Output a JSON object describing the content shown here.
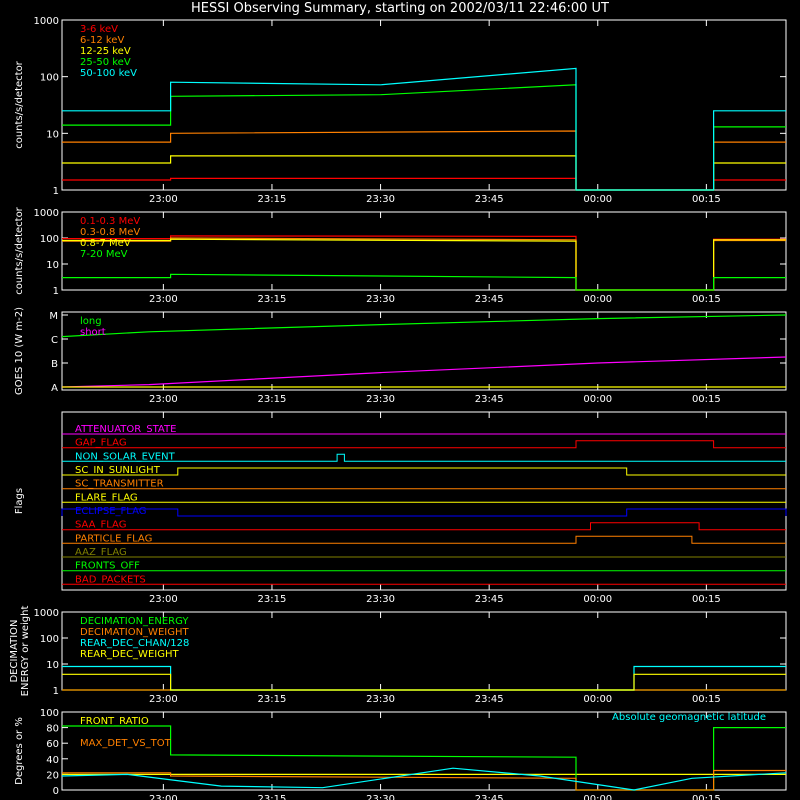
{
  "title": "HESSI Observing Summary, starting on 2002/03/11 22:46:00 UT",
  "time_ticks": [
    "23:00",
    "23:15",
    "23:30",
    "23:45",
    "00:00",
    "00:15"
  ],
  "chart_data": [
    {
      "type": "line",
      "ylabel": "counts/s/detector",
      "yscale": "log",
      "ylim": [
        1,
        1000
      ],
      "yticks": [
        "1",
        "10",
        "100",
        "1000"
      ],
      "x_range": [
        "22:46",
        "00:26"
      ],
      "series": [
        {
          "name": "3-6 keV",
          "color": "#ff0000",
          "x": [
            "22:46",
            "23:01",
            "23:01",
            "23:57",
            "23:57",
            "00:16",
            "00:16",
            "00:26"
          ],
          "y": [
            1.5,
            1.5,
            1.6,
            1.6,
            1,
            1,
            1.5,
            1.5
          ]
        },
        {
          "name": "6-12 keV",
          "color": "#ff8000",
          "x": [
            "22:46",
            "23:01",
            "23:01",
            "23:57",
            "23:57",
            "00:16",
            "00:16",
            "00:26"
          ],
          "y": [
            7,
            7,
            10,
            11,
            1,
            1,
            7,
            7
          ]
        },
        {
          "name": "12-25 keV",
          "color": "#ffff00",
          "x": [
            "22:46",
            "23:01",
            "23:01",
            "23:57",
            "23:57",
            "00:16",
            "00:16",
            "00:26"
          ],
          "y": [
            3,
            3,
            4,
            4,
            1,
            1,
            3,
            3
          ]
        },
        {
          "name": "25-50 keV",
          "color": "#00ff00",
          "x": [
            "22:46",
            "23:01",
            "23:01",
            "23:30",
            "23:57",
            "23:57",
            "00:16",
            "00:16",
            "00:26"
          ],
          "y": [
            14,
            14,
            45,
            48,
            72,
            1,
            1,
            13,
            13
          ]
        },
        {
          "name": "50-100 keV",
          "color": "#00ffff",
          "x": [
            "22:46",
            "23:01",
            "23:01",
            "23:30",
            "23:57",
            "23:57",
            "00:16",
            "00:16",
            "00:26"
          ],
          "y": [
            25,
            25,
            80,
            72,
            140,
            1,
            1,
            25,
            25
          ]
        }
      ]
    },
    {
      "type": "line",
      "ylabel": "counts/s/detector",
      "yscale": "log",
      "ylim": [
        1,
        1000
      ],
      "yticks": [
        "1",
        "10",
        "100",
        "1000"
      ],
      "x_range": [
        "22:46",
        "00:26"
      ],
      "series": [
        {
          "name": "0.1-0.3 MeV",
          "color": "#ff0000",
          "x": [
            "22:46",
            "23:01",
            "23:01",
            "23:57",
            "23:57",
            "00:16",
            "00:16",
            "00:26"
          ],
          "y": [
            95,
            95,
            120,
            115,
            1,
            1,
            90,
            90
          ]
        },
        {
          "name": "0.3-0.8 MeV",
          "color": "#ff8000",
          "x": [
            "22:46",
            "23:01",
            "23:01",
            "23:57",
            "23:57",
            "00:16",
            "00:16",
            "00:26"
          ],
          "y": [
            75,
            75,
            100,
            85,
            1,
            1,
            80,
            80
          ]
        },
        {
          "name": "0.8-7 MeV",
          "color": "#ffff00",
          "x": [
            "22:46",
            "23:01",
            "23:01",
            "23:57",
            "23:57",
            "00:16",
            "00:16",
            "00:26"
          ],
          "y": [
            80,
            80,
            90,
            75,
            1,
            1,
            85,
            85
          ]
        },
        {
          "name": "7-20 MeV",
          "color": "#00ff00",
          "x": [
            "22:46",
            "23:01",
            "23:01",
            "23:57",
            "23:57",
            "00:16",
            "00:16",
            "00:26"
          ],
          "y": [
            3,
            3,
            4,
            3,
            1,
            1,
            3,
            3
          ]
        }
      ]
    },
    {
      "type": "line",
      "ylabel": "GOES 10 (W m-2)",
      "ylevels": [
        "A",
        "B",
        "C",
        "M"
      ],
      "x_range": [
        "22:46",
        "00:26"
      ],
      "series": [
        {
          "name": "long",
          "color": "#00ff00",
          "x": [
            "22:46",
            "22:58",
            "23:30",
            "00:00",
            "00:26"
          ],
          "level": [
            2.1,
            2.3,
            2.6,
            2.85,
            3.0
          ]
        },
        {
          "name": "short",
          "color": "#ff00ff",
          "x": [
            "22:46",
            "22:58",
            "23:30",
            "00:00",
            "00:26"
          ],
          "level": [
            0.0,
            0.1,
            0.6,
            1.0,
            1.25
          ]
        },
        {
          "name": "",
          "color": "#ffff00",
          "x": [
            "22:46",
            "00:26"
          ],
          "level": [
            0,
            0
          ]
        }
      ]
    },
    {
      "type": "line",
      "ylabel": "Flags",
      "x_range": [
        "22:46",
        "00:26"
      ],
      "flags": [
        {
          "name": "ATTENUATOR_STATE",
          "color": "#ff00ff",
          "on": []
        },
        {
          "name": "GAP_FLAG",
          "color": "#ff0000",
          "on": [
            [
              "23:57",
              "00:16"
            ]
          ]
        },
        {
          "name": "NON_SOLAR_EVENT",
          "color": "#00ffff",
          "on": [
            [
              "23:24",
              "23:25"
            ]
          ]
        },
        {
          "name": "SC_IN_SUNLIGHT",
          "color": "#ffff00",
          "on": [
            [
              "23:02",
              "00:04"
            ]
          ]
        },
        {
          "name": "SC_TRANSMITTER",
          "color": "#ff8000",
          "on": []
        },
        {
          "name": "FLARE_FLAG",
          "color": "#ffff00",
          "on": []
        },
        {
          "name": "ECLIPSE_FLAG",
          "color": "#0000ff",
          "on": [
            [
              "22:46",
              "23:02"
            ],
            [
              "00:04",
              "00:26"
            ]
          ]
        },
        {
          "name": "SAA_FLAG",
          "color": "#ff0000",
          "on": [
            [
              "23:59",
              "00:14"
            ]
          ]
        },
        {
          "name": "PARTICLE_FLAG",
          "color": "#ff8000",
          "on": [
            [
              "23:57",
              "00:13"
            ]
          ]
        },
        {
          "name": "AAZ_FLAG",
          "color": "#808000",
          "on": []
        },
        {
          "name": "FRONTS_OFF",
          "color": "#00ff00",
          "on": []
        },
        {
          "name": "BAD_PACKETS",
          "color": "#ff0000",
          "on": []
        }
      ]
    },
    {
      "type": "line",
      "ylabel": "DECIMATION ENERGY or weight",
      "yscale": "log",
      "ylim": [
        1,
        1000
      ],
      "yticks": [
        "1",
        "10",
        "100",
        "1000"
      ],
      "x_range": [
        "22:46",
        "00:26"
      ],
      "series": [
        {
          "name": "DECIMATION_ENERGY",
          "color": "#00ff00",
          "x": [
            "22:46",
            "00:26"
          ],
          "y": [
            1,
            1
          ]
        },
        {
          "name": "DECIMATION_WEIGHT",
          "color": "#ff8000",
          "x": [
            "22:46",
            "00:26"
          ],
          "y": [
            1,
            1
          ]
        },
        {
          "name": "REAR_DEC_CHAN/128",
          "color": "#00ffff",
          "x": [
            "22:46",
            "23:01",
            "23:01",
            "00:05",
            "00:05",
            "00:26"
          ],
          "y": [
            8,
            8,
            1,
            1,
            8,
            8
          ]
        },
        {
          "name": "REAR_DEC_WEIGHT",
          "color": "#ffff00",
          "x": [
            "22:46",
            "23:01",
            "23:01",
            "00:05",
            "00:05",
            "00:26"
          ],
          "y": [
            4,
            4,
            1,
            1,
            4,
            4
          ]
        }
      ]
    },
    {
      "type": "line",
      "ylabel": "Degrees or %",
      "ylim": [
        0,
        100
      ],
      "yticks": [
        "0",
        "20",
        "40",
        "60",
        "80",
        "100"
      ],
      "x_range": [
        "22:46",
        "00:26"
      ],
      "annotation": "Absolute geomagnetic latitude",
      "series": [
        {
          "name": "FRONT_RATIO",
          "color": "#ffff00",
          "x": [
            "22:46",
            "00:26"
          ],
          "y": [
            20,
            20
          ]
        },
        {
          "name": "",
          "color": "#00ff00",
          "x": [
            "22:46",
            "23:01",
            "23:01",
            "23:57",
            "23:57",
            "00:16",
            "00:16",
            "00:26"
          ],
          "y": [
            82,
            82,
            45,
            42,
            0,
            0,
            80,
            80
          ]
        },
        {
          "name": "MAX_DET_VS_TOT",
          "color": "#ff8000",
          "x": [
            "22:46",
            "23:01",
            "23:01",
            "23:57",
            "23:57",
            "00:16",
            "00:16",
            "00:26"
          ],
          "y": [
            22,
            22,
            18,
            15,
            0,
            0,
            25,
            25
          ]
        },
        {
          "name": "Absolute geomagnetic latitude",
          "color": "#00ffff",
          "x": [
            "22:46",
            "22:55",
            "23:08",
            "23:22",
            "23:40",
            "23:52",
            "00:05",
            "00:13",
            "00:26"
          ],
          "y": [
            18,
            20,
            5,
            3,
            28,
            18,
            0,
            15,
            22
          ]
        }
      ]
    }
  ]
}
